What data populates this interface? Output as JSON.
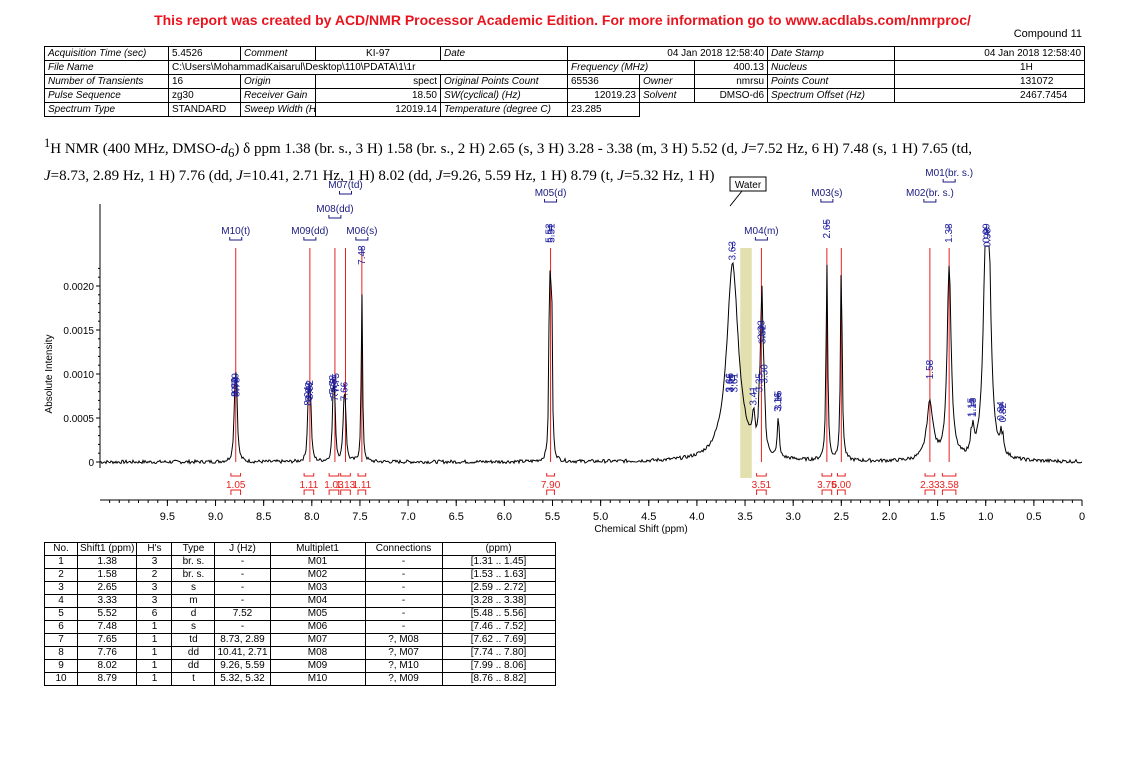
{
  "banner": "This report was created by ACD/NMR Processor Academic Edition. For more information go to www.acdlabs.com/nmrproc/",
  "compound": "Compound 11",
  "acq": {
    "acq_time_k": "Acquisition Time (sec)",
    "acq_time_v": "5.4526",
    "comment_k": "Comment",
    "comment_v": "KI-97",
    "date_k": "Date",
    "date_v": "04 Jan 2018 12:58:40",
    "datestamp_k": "Date Stamp",
    "datestamp_v": "04 Jan 2018 12:58:40",
    "file_k": "File Name",
    "file_v": "C:\\Users\\MohammadKaisarul\\Desktop\\110\\PDATA\\1\\1r",
    "freq_k": "Frequency (MHz)",
    "freq_v": "400.13",
    "nucleus_k": "Nucleus",
    "nucleus_v": "1H",
    "transients_k": "Number of Transients",
    "transients_v": "16",
    "origin_k": "Origin",
    "origin_v": "spect",
    "origpoints_k": "Original Points Count",
    "origpoints_v": "65536",
    "owner_k": "Owner",
    "owner_v": "nmrsu",
    "points_k": "Points Count",
    "points_v": "131072",
    "pulse_k": "Pulse Sequence",
    "pulse_v": "zg30",
    "gain_k": "Receiver Gain",
    "gain_v": "18.50",
    "sw_k": "SW(cyclical) (Hz)",
    "sw_v": "12019.23",
    "solvent_k": "Solvent",
    "solvent_v": "DMSO-d6",
    "offset_k": "Spectrum Offset (Hz)",
    "offset_v": "2467.7454",
    "spectype_k": "Spectrum Type",
    "spectype_v": "STANDARD",
    "sweep_k": "Sweep Width (Hz)",
    "sweep_v": "12019.14",
    "temp_k": "Temperature (degree C)",
    "temp_v": "23.285"
  },
  "nmr_text": {
    "sup": "1",
    "a": "H NMR (400 MHz, DMSO-",
    "d": "d",
    "sub": "6",
    "b": ") δ ppm 1.38 (br. s., 3 H) 1.58 (br. s., 2 H) 2.65 (s, 3 H) 3.28 - 3.38 (m, 3 H) 5.52 (d, ",
    "j1": "J",
    "c": "=7.52 Hz, 6 H) 7.48 (s, 1 H) 7.65 (td,",
    "j2": "J",
    "e": "=8.73, 2.89 Hz, 1 H) 7.76 (dd, ",
    "j3": "J",
    "f": "=10.41, 2.71 Hz, 1 H) 8.02 (dd, ",
    "j4": "J",
    "g": "=9.26, 5.59 Hz, 1 H) 8.79 (t, ",
    "j5": "J",
    "h": "=5.32 Hz, 1 H)"
  },
  "chart_data": {
    "type": "line",
    "xlabel": "Chemical Shift (ppm)",
    "ylabel": "Absolute Intensity",
    "xlim": [
      10.2,
      0
    ],
    "ylim": [
      -0.0001,
      0.0022
    ],
    "x_ticks": [
      9.5,
      9.0,
      8.5,
      8.0,
      7.5,
      7.0,
      6.5,
      6.0,
      5.5,
      5.0,
      4.5,
      4.0,
      3.5,
      3.0,
      2.5,
      2.0,
      1.5,
      1.0,
      0.5,
      0
    ],
    "x_tick_labels": [
      "9.5",
      "9.0",
      "8.5",
      "8.0",
      "7.5",
      "7.0",
      "6.5",
      "6.0",
      "5.5",
      "5.0",
      "4.5",
      "4.0",
      "3.5",
      "3.0",
      "2.5",
      "2.0",
      "1.5",
      "1.0",
      "0.5",
      "0"
    ],
    "y_ticks": [
      0,
      0.0005,
      0.001,
      0.0015,
      0.002
    ],
    "y_tick_labels": [
      "0",
      "0.0005",
      "0.0010",
      "0.0015",
      "0.0020"
    ],
    "water_region": [
      3.43,
      3.55
    ],
    "water_label": "Water",
    "peaks": [
      {
        "ppm": 8.8,
        "h": 0.00045,
        "w": 0.012
      },
      {
        "ppm": 8.79,
        "h": 0.0005,
        "w": 0.012
      },
      {
        "ppm": 8.78,
        "h": 0.00045,
        "w": 0.012
      },
      {
        "ppm": 8.04,
        "h": 0.00035,
        "w": 0.01
      },
      {
        "ppm": 8.03,
        "h": 0.0004,
        "w": 0.01
      },
      {
        "ppm": 8.02,
        "h": 0.00042,
        "w": 0.01
      },
      {
        "ppm": 8.01,
        "h": 0.00036,
        "w": 0.01
      },
      {
        "ppm": 7.78,
        "h": 0.00048,
        "w": 0.01
      },
      {
        "ppm": 7.77,
        "h": 0.00044,
        "w": 0.01
      },
      {
        "ppm": 7.76,
        "h": 0.0004,
        "w": 0.01
      },
      {
        "ppm": 7.67,
        "h": 0.00036,
        "w": 0.01
      },
      {
        "ppm": 7.66,
        "h": 0.0004,
        "w": 0.01
      },
      {
        "ppm": 7.65,
        "h": 0.00042,
        "w": 0.01
      },
      {
        "ppm": 7.48,
        "h": 0.00195,
        "w": 0.008
      },
      {
        "ppm": 5.53,
        "h": 0.0022,
        "w": 0.008
      },
      {
        "ppm": 5.51,
        "h": 0.0022,
        "w": 0.008
      },
      {
        "ppm": 3.63,
        "h": 0.002,
        "w": 0.07
      },
      {
        "ppm": 3.41,
        "h": 0.00035,
        "w": 0.015
      },
      {
        "ppm": 3.35,
        "h": 0.0005,
        "w": 0.01
      },
      {
        "ppm": 3.33,
        "h": 0.0011,
        "w": 0.01
      },
      {
        "ppm": 3.32,
        "h": 0.00105,
        "w": 0.01
      },
      {
        "ppm": 3.3,
        "h": 0.0006,
        "w": 0.01
      },
      {
        "ppm": 3.16,
        "h": 0.00028,
        "w": 0.008
      },
      {
        "ppm": 3.15,
        "h": 0.0003,
        "w": 0.008
      },
      {
        "ppm": 2.65,
        "h": 0.00225,
        "w": 0.01
      },
      {
        "ppm": 2.5,
        "h": 0.0023,
        "w": 0.01
      },
      {
        "ppm": 1.58,
        "h": 0.00065,
        "w": 0.04
      },
      {
        "ppm": 1.38,
        "h": 0.0022,
        "w": 0.025
      },
      {
        "ppm": 1.15,
        "h": 0.00022,
        "w": 0.01
      },
      {
        "ppm": 1.13,
        "h": 0.00022,
        "w": 0.01
      },
      {
        "ppm": 0.99,
        "h": 0.0022,
        "w": 0.03
      },
      {
        "ppm": 0.98,
        "h": 0.00215,
        "w": 0.03
      },
      {
        "ppm": 0.84,
        "h": 0.00018,
        "w": 0.01
      },
      {
        "ppm": 0.82,
        "h": 0.00016,
        "w": 0.01
      }
    ],
    "red_lines": [
      8.79,
      8.02,
      7.76,
      7.65,
      7.48,
      5.52,
      3.33,
      2.65,
      2.5,
      1.58,
      1.38
    ],
    "peak_labels": [
      {
        "ppm": 8.8,
        "text": "8.80"
      },
      {
        "ppm": 8.79,
        "text": "8.79"
      },
      {
        "ppm": 8.78,
        "text": "8.78"
      },
      {
        "ppm": 8.04,
        "text": "8.04"
      },
      {
        "ppm": 8.03,
        "text": "8.03"
      },
      {
        "ppm": 8.02,
        "text": "8.02"
      },
      {
        "ppm": 7.78,
        "text": "7.78"
      },
      {
        "ppm": 7.77,
        "text": "7.77"
      },
      {
        "ppm": 7.76,
        "text": "7.76"
      },
      {
        "ppm": 7.66,
        "text": "7.66"
      },
      {
        "ppm": 7.75,
        "text": "7.75"
      },
      {
        "ppm": 7.48,
        "text": "7.48"
      },
      {
        "ppm": 5.53,
        "text": "5.53"
      },
      {
        "ppm": 5.51,
        "text": "5.51"
      },
      {
        "ppm": 3.66,
        "text": "3.66"
      },
      {
        "ppm": 3.65,
        "text": "3.65"
      },
      {
        "ppm": 3.63,
        "text": "3.63"
      },
      {
        "ppm": 3.61,
        "text": "3.61"
      },
      {
        "ppm": 3.41,
        "text": "3.41"
      },
      {
        "ppm": 3.35,
        "text": "3.35"
      },
      {
        "ppm": 3.33,
        "text": "3.33"
      },
      {
        "ppm": 3.32,
        "text": "3.32"
      },
      {
        "ppm": 3.3,
        "text": "3.30"
      },
      {
        "ppm": 3.16,
        "text": "3.16"
      },
      {
        "ppm": 3.15,
        "text": "3.15"
      },
      {
        "ppm": 2.65,
        "text": "2.65"
      },
      {
        "ppm": 1.58,
        "text": "1.58"
      },
      {
        "ppm": 1.38,
        "text": "1.38"
      },
      {
        "ppm": 1.15,
        "text": "1.15"
      },
      {
        "ppm": 1.13,
        "text": "1.13"
      },
      {
        "ppm": 0.99,
        "text": "0.99"
      },
      {
        "ppm": 0.98,
        "text": "0.98"
      },
      {
        "ppm": 0.84,
        "text": "0.84"
      },
      {
        "ppm": 0.82,
        "text": "0.82"
      }
    ],
    "multiplets": [
      {
        "label": "M10(t)",
        "ppm": 8.79
      },
      {
        "label": "M09(dd)",
        "ppm": 8.02
      },
      {
        "label": "M08(dd)",
        "ppm": 7.76
      },
      {
        "label": "M07(td)",
        "ppm": 7.65
      },
      {
        "label": "M06(s)",
        "ppm": 7.48
      },
      {
        "label": "M05(d)",
        "ppm": 5.52
      },
      {
        "label": "M04(m)",
        "ppm": 3.33
      },
      {
        "label": "M03(s)",
        "ppm": 2.65
      },
      {
        "label": "M02(br. s.)",
        "ppm": 1.58
      },
      {
        "label": "M01(br. s.)",
        "ppm": 1.38
      }
    ],
    "integrals": [
      {
        "from": 8.84,
        "to": 8.74,
        "value": "1.05"
      },
      {
        "from": 8.08,
        "to": 7.98,
        "value": "1.11"
      },
      {
        "from": 7.82,
        "to": 7.72,
        "value": "1.03"
      },
      {
        "from": 7.7,
        "to": 7.6,
        "value": "1.13"
      },
      {
        "from": 7.52,
        "to": 7.44,
        "value": "1.11"
      },
      {
        "from": 5.56,
        "to": 5.48,
        "value": "7.90"
      },
      {
        "from": 3.38,
        "to": 3.28,
        "value": "3.51"
      },
      {
        "from": 2.7,
        "to": 2.6,
        "value": "3.75"
      },
      {
        "from": 2.54,
        "to": 2.46,
        "value": "6.00"
      },
      {
        "from": 1.63,
        "to": 1.53,
        "value": "2.33"
      },
      {
        "from": 1.45,
        "to": 1.31,
        "value": "3.58"
      }
    ]
  },
  "peak_table": {
    "headers": [
      "No.",
      "Shift1 (ppm)",
      "H's",
      "Type",
      "J (Hz)",
      "Multiplet1",
      "Connections",
      "(ppm)"
    ],
    "rows": [
      [
        "1",
        "1.38",
        "3",
        "br. s.",
        "-",
        "M01",
        "-",
        "[1.31 .. 1.45]"
      ],
      [
        "2",
        "1.58",
        "2",
        "br. s.",
        "-",
        "M02",
        "-",
        "[1.53 .. 1.63]"
      ],
      [
        "3",
        "2.65",
        "3",
        "s",
        "-",
        "M03",
        "-",
        "[2.59 .. 2.72]"
      ],
      [
        "4",
        "3.33",
        "3",
        "m",
        "-",
        "M04",
        "-",
        "[3.28 .. 3.38]"
      ],
      [
        "5",
        "5.52",
        "6",
        "d",
        "7.52",
        "M05",
        "-",
        "[5.48 .. 5.56]"
      ],
      [
        "6",
        "7.48",
        "1",
        "s",
        "-",
        "M06",
        "-",
        "[7.46 .. 7.52]"
      ],
      [
        "7",
        "7.65",
        "1",
        "td",
        "8.73, 2.89",
        "M07",
        "?, M08",
        "[7.62 .. 7.69]"
      ],
      [
        "8",
        "7.76",
        "1",
        "dd",
        "10.41, 2.71",
        "M08",
        "?, M07",
        "[7.74 .. 7.80]"
      ],
      [
        "9",
        "8.02",
        "1",
        "dd",
        "9.26, 5.59",
        "M09",
        "?, M10",
        "[7.99 .. 8.06]"
      ],
      [
        "10",
        "8.79",
        "1",
        "t",
        "5.32, 5.32",
        "M10",
        "?, M09",
        "[8.76 .. 8.82]"
      ]
    ]
  }
}
